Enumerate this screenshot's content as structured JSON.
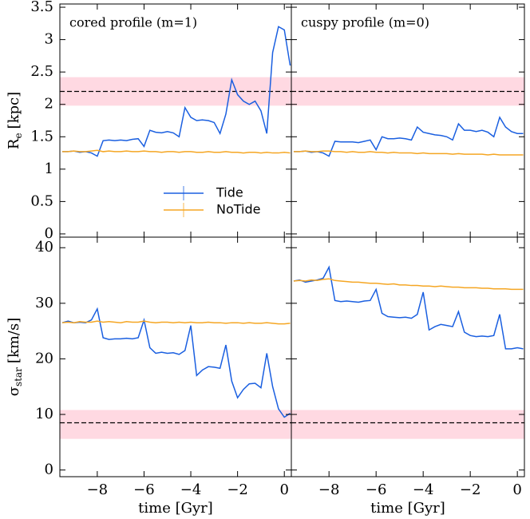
{
  "chart_data": [
    {
      "type": "line",
      "annotation": "cored profile (m=1)",
      "legend": true,
      "ylabel": "R",
      "ylabel_sub": "e",
      "ylabel_unit": "[kpc]",
      "x": [
        -9.5,
        -9.25,
        -9,
        -8.75,
        -8.5,
        -8.25,
        -8,
        -7.75,
        -7.5,
        -7.25,
        -7,
        -6.75,
        -6.5,
        -6.25,
        -6,
        -5.75,
        -5.5,
        -5.25,
        -5,
        -4.75,
        -4.5,
        -4.25,
        -4,
        -3.75,
        -3.5,
        -3.25,
        -3,
        -2.75,
        -2.5,
        -2.25,
        -2,
        -1.75,
        -1.5,
        -1.25,
        -1,
        -0.75,
        -0.5,
        -0.25,
        0,
        0.25
      ],
      "series": [
        {
          "name": "Tide",
          "color": "#1a5fe0",
          "values": [
            1.27,
            1.27,
            1.28,
            1.26,
            1.27,
            1.25,
            1.2,
            1.44,
            1.45,
            1.44,
            1.45,
            1.44,
            1.46,
            1.47,
            1.35,
            1.6,
            1.57,
            1.56,
            1.58,
            1.56,
            1.5,
            1.95,
            1.8,
            1.75,
            1.76,
            1.75,
            1.72,
            1.55,
            1.85,
            2.38,
            2.15,
            2.05,
            2.0,
            2.05,
            1.9,
            1.55,
            2.8,
            3.2,
            3.15,
            2.6
          ]
        },
        {
          "name": "NoTide",
          "color": "#f5a623",
          "values": [
            1.27,
            1.27,
            1.28,
            1.27,
            1.27,
            1.28,
            1.29,
            1.27,
            1.28,
            1.27,
            1.27,
            1.28,
            1.27,
            1.27,
            1.28,
            1.27,
            1.27,
            1.26,
            1.27,
            1.27,
            1.26,
            1.27,
            1.27,
            1.26,
            1.26,
            1.27,
            1.26,
            1.26,
            1.27,
            1.26,
            1.26,
            1.25,
            1.26,
            1.26,
            1.25,
            1.26,
            1.25,
            1.25,
            1.26,
            1.25
          ]
        }
      ],
      "reference": {
        "value": 2.2,
        "low": 1.98,
        "high": 2.42
      },
      "xlim": [
        -9.6,
        0.3
      ],
      "ylim": [
        -0.05,
        3.55
      ],
      "xticks": [
        -8,
        -6,
        -4,
        -2,
        0
      ],
      "yticks": [
        0,
        0.5,
        1,
        1.5,
        2,
        2.5,
        3,
        3.5
      ]
    },
    {
      "type": "line",
      "annotation": "cuspy profile (m=0)",
      "x": [
        -9.5,
        -9.25,
        -9,
        -8.75,
        -8.5,
        -8.25,
        -8,
        -7.75,
        -7.5,
        -7.25,
        -7,
        -6.75,
        -6.5,
        -6.25,
        -6,
        -5.75,
        -5.5,
        -5.25,
        -5,
        -4.75,
        -4.5,
        -4.25,
        -4,
        -3.75,
        -3.5,
        -3.25,
        -3,
        -2.75,
        -2.5,
        -2.25,
        -2,
        -1.75,
        -1.5,
        -1.25,
        -1,
        -0.75,
        -0.5,
        -0.25,
        0,
        0.25
      ],
      "series": [
        {
          "name": "Tide",
          "color": "#1a5fe0",
          "values": [
            1.27,
            1.27,
            1.28,
            1.26,
            1.27,
            1.25,
            1.2,
            1.43,
            1.42,
            1.42,
            1.42,
            1.41,
            1.43,
            1.45,
            1.3,
            1.5,
            1.47,
            1.47,
            1.48,
            1.47,
            1.45,
            1.65,
            1.57,
            1.55,
            1.53,
            1.52,
            1.5,
            1.45,
            1.7,
            1.6,
            1.6,
            1.58,
            1.6,
            1.57,
            1.5,
            1.8,
            1.65,
            1.58,
            1.55,
            1.55
          ]
        },
        {
          "name": "NoTide",
          "color": "#f5a623",
          "values": [
            1.27,
            1.27,
            1.28,
            1.27,
            1.27,
            1.28,
            1.28,
            1.27,
            1.27,
            1.26,
            1.27,
            1.26,
            1.26,
            1.27,
            1.26,
            1.26,
            1.25,
            1.26,
            1.25,
            1.25,
            1.25,
            1.24,
            1.25,
            1.24,
            1.24,
            1.24,
            1.24,
            1.23,
            1.24,
            1.23,
            1.23,
            1.23,
            1.23,
            1.22,
            1.23,
            1.22,
            1.22,
            1.22,
            1.22,
            1.22
          ]
        }
      ],
      "reference": {
        "value": 2.2,
        "low": 1.98,
        "high": 2.42
      },
      "xlim": [
        -9.6,
        0.3
      ],
      "ylim": [
        -0.05,
        3.55
      ],
      "xticks": [
        -8,
        -6,
        -4,
        -2,
        0
      ],
      "yticks": [
        0,
        0.5,
        1,
        1.5,
        2,
        2.5,
        3,
        3.5
      ]
    },
    {
      "type": "line",
      "ylabel": "σ",
      "ylabel_sub": "star",
      "ylabel_unit": "[km/s]",
      "xlabel": "time [Gyr]",
      "x": [
        -9.5,
        -9.25,
        -9,
        -8.75,
        -8.5,
        -8.25,
        -8,
        -7.75,
        -7.5,
        -7.25,
        -7,
        -6.75,
        -6.5,
        -6.25,
        -6,
        -5.75,
        -5.5,
        -5.25,
        -5,
        -4.75,
        -4.5,
        -4.25,
        -4,
        -3.75,
        -3.5,
        -3.25,
        -3,
        -2.75,
        -2.5,
        -2.25,
        -2,
        -1.75,
        -1.5,
        -1.25,
        -1,
        -0.75,
        -0.5,
        -0.25,
        0,
        0.25
      ],
      "series": [
        {
          "name": "Tide",
          "color": "#1a5fe0",
          "values": [
            26.5,
            26.8,
            26.5,
            26.6,
            26.5,
            27,
            29,
            23.8,
            23.5,
            23.6,
            23.6,
            23.7,
            23.6,
            23.8,
            27,
            22,
            21,
            21.2,
            21,
            21.1,
            20.8,
            21.5,
            26,
            17,
            18,
            18.6,
            18.5,
            18.3,
            22.5,
            16,
            13,
            14.5,
            15.5,
            15.6,
            14.8,
            21,
            15,
            11,
            9.5,
            10.2
          ]
        },
        {
          "name": "NoTide",
          "color": "#f5a623",
          "values": [
            26.5,
            26.6,
            26.5,
            26.7,
            26.6,
            26.6,
            26.8,
            26.6,
            26.7,
            26.6,
            26.5,
            26.7,
            26.6,
            26.6,
            26.8,
            26.6,
            26.5,
            26.6,
            26.6,
            26.5,
            26.6,
            26.5,
            26.6,
            26.5,
            26.5,
            26.6,
            26.5,
            26.5,
            26.4,
            26.5,
            26.5,
            26.4,
            26.5,
            26.4,
            26.4,
            26.5,
            26.4,
            26.3,
            26.3,
            26.4
          ]
        }
      ],
      "reference": {
        "value": 8.5,
        "low": 5.6,
        "high": 10.8
      },
      "xlim": [
        -9.6,
        0.3
      ],
      "ylim": [
        -1.2,
        41.9
      ],
      "xticks": [
        {
          "value": -8,
          "label": "−8"
        },
        {
          "value": -6,
          "label": "−6"
        },
        {
          "value": -4,
          "label": "−4"
        },
        {
          "value": -2,
          "label": "−2"
        },
        0
      ],
      "yticks": [
        0,
        10,
        20,
        30,
        40
      ]
    },
    {
      "type": "line",
      "xlabel": "time [Gyr]",
      "x": [
        -9.5,
        -9.25,
        -9,
        -8.75,
        -8.5,
        -8.25,
        -8,
        -7.75,
        -7.5,
        -7.25,
        -7,
        -6.75,
        -6.5,
        -6.25,
        -6,
        -5.75,
        -5.5,
        -5.25,
        -5,
        -4.75,
        -4.5,
        -4.25,
        -4,
        -3.75,
        -3.5,
        -3.25,
        -3,
        -2.75,
        -2.5,
        -2.25,
        -2,
        -1.75,
        -1.5,
        -1.25,
        -1,
        -0.75,
        -0.5,
        -0.25,
        0,
        0.25
      ],
      "series": [
        {
          "name": "Tide",
          "color": "#1a5fe0",
          "values": [
            34,
            34.2,
            33.8,
            34,
            34.2,
            34.5,
            36.5,
            30.5,
            30.3,
            30.4,
            30.3,
            30.2,
            30.4,
            30.5,
            32.5,
            28.2,
            27.6,
            27.5,
            27.4,
            27.5,
            27.3,
            28,
            32,
            25.2,
            25.8,
            26.2,
            26,
            25.8,
            28.5,
            24.8,
            24.2,
            24,
            24.1,
            24,
            24.2,
            28,
            21.8,
            21.8,
            22,
            21.8
          ]
        },
        {
          "name": "NoTide",
          "color": "#f5a623",
          "values": [
            34,
            34.1,
            34,
            34.2,
            34.1,
            34.3,
            34.4,
            34.1,
            34,
            33.9,
            33.8,
            33.8,
            33.7,
            33.6,
            33.6,
            33.5,
            33.4,
            33.5,
            33.3,
            33.3,
            33.2,
            33.2,
            33.1,
            33.1,
            33,
            33.1,
            33,
            32.9,
            32.9,
            32.8,
            32.8,
            32.8,
            32.7,
            32.7,
            32.6,
            32.6,
            32.6,
            32.5,
            32.5,
            32.5
          ]
        }
      ],
      "reference": {
        "value": 8.5,
        "low": 5.6,
        "high": 10.8
      },
      "xlim": [
        -9.6,
        0.3
      ],
      "ylim": [
        -1.2,
        41.9
      ],
      "xticks": [
        {
          "value": -8,
          "label": "−8"
        },
        {
          "value": -6,
          "label": "−6"
        },
        {
          "value": -4,
          "label": "−4"
        },
        {
          "value": -2,
          "label": "−2"
        },
        0
      ],
      "yticks": [
        0,
        10,
        20,
        30,
        40
      ]
    }
  ]
}
